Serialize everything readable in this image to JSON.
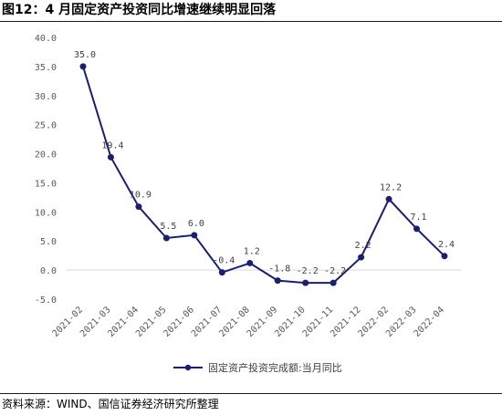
{
  "header": {
    "title": "图12：4 月固定资产投资同比增速继续明显回落"
  },
  "footer": {
    "source": "资料来源：WIND、国信证券经济研究所整理"
  },
  "colors": {
    "series": "#1b1f6e",
    "axis": "#d9d9d9",
    "text": "#595959"
  },
  "chart_data": {
    "type": "line",
    "title": "图12：4 月固定资产投资同比增速继续明显回落",
    "xlabel": "",
    "ylabel": "",
    "ylim": [
      -5,
      40
    ],
    "yticks": [
      "40.0",
      "35.0",
      "30.0",
      "25.0",
      "20.0",
      "15.0",
      "10.0",
      "5.0",
      "0.0",
      "-5.0"
    ],
    "grid": false,
    "legend_position": "bottom-center",
    "categories": [
      "2021-02",
      "2021-03",
      "2021-04",
      "2021-05",
      "2021-06",
      "2021-07",
      "2021-08",
      "2021-09",
      "2021-10",
      "2021-11",
      "2021-12",
      "2022-02",
      "2022-03",
      "2022-04"
    ],
    "series": [
      {
        "name": "固定资产投资完成额:当月同比",
        "values": [
          35.0,
          19.4,
          10.9,
          5.5,
          6.0,
          -0.4,
          1.2,
          -1.8,
          -2.2,
          -2.2,
          2.2,
          12.2,
          7.1,
          2.4
        ],
        "labels": [
          "35.0",
          "19.4",
          "10.9",
          "5.5",
          "6.0",
          "-0.4",
          "1.2",
          "-1.8",
          "-2.2",
          "-2.2",
          "2.2",
          "12.2",
          "7.1",
          "2.4"
        ]
      }
    ]
  }
}
